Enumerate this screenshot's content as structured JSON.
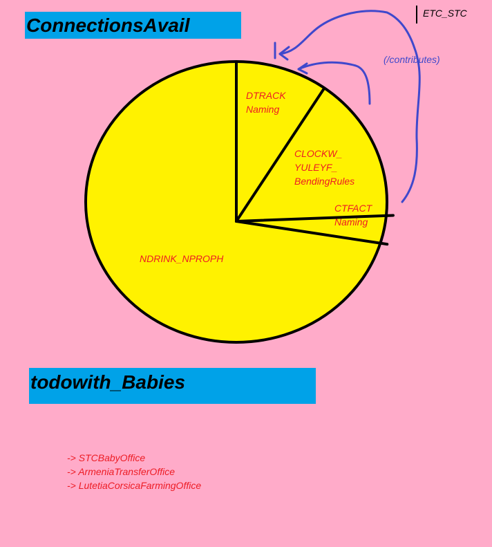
{
  "title_connections": "ConnectionsAvail",
  "title_babies": "todowith_Babies",
  "annotation_etc": "ETC_STC",
  "annotation_contributes": "(/contributes)",
  "colors": {
    "background": "#ffabc9",
    "title_box": "#00a2e8",
    "pie_fill": "#fff200",
    "label_text": "#ed1c24",
    "arrow": "#3f48cc"
  },
  "chart_data": {
    "type": "pie",
    "slices": [
      {
        "label": "DTRACK\nNaming",
        "value": 9.3
      },
      {
        "label": "CLOCKW_\nYULEYF_\nBendingRules",
        "value": 15.1
      },
      {
        "label": "CTFACT\nNaming",
        "value": 3.0
      },
      {
        "label": "NDRINK_NPROPH",
        "value": 72.6
      }
    ]
  },
  "list_items": [
    "-> STCBabyOffice",
    "-> ArmeniaTransferOffice",
    "-> LutetiaCorsicaFarmingOffice"
  ]
}
